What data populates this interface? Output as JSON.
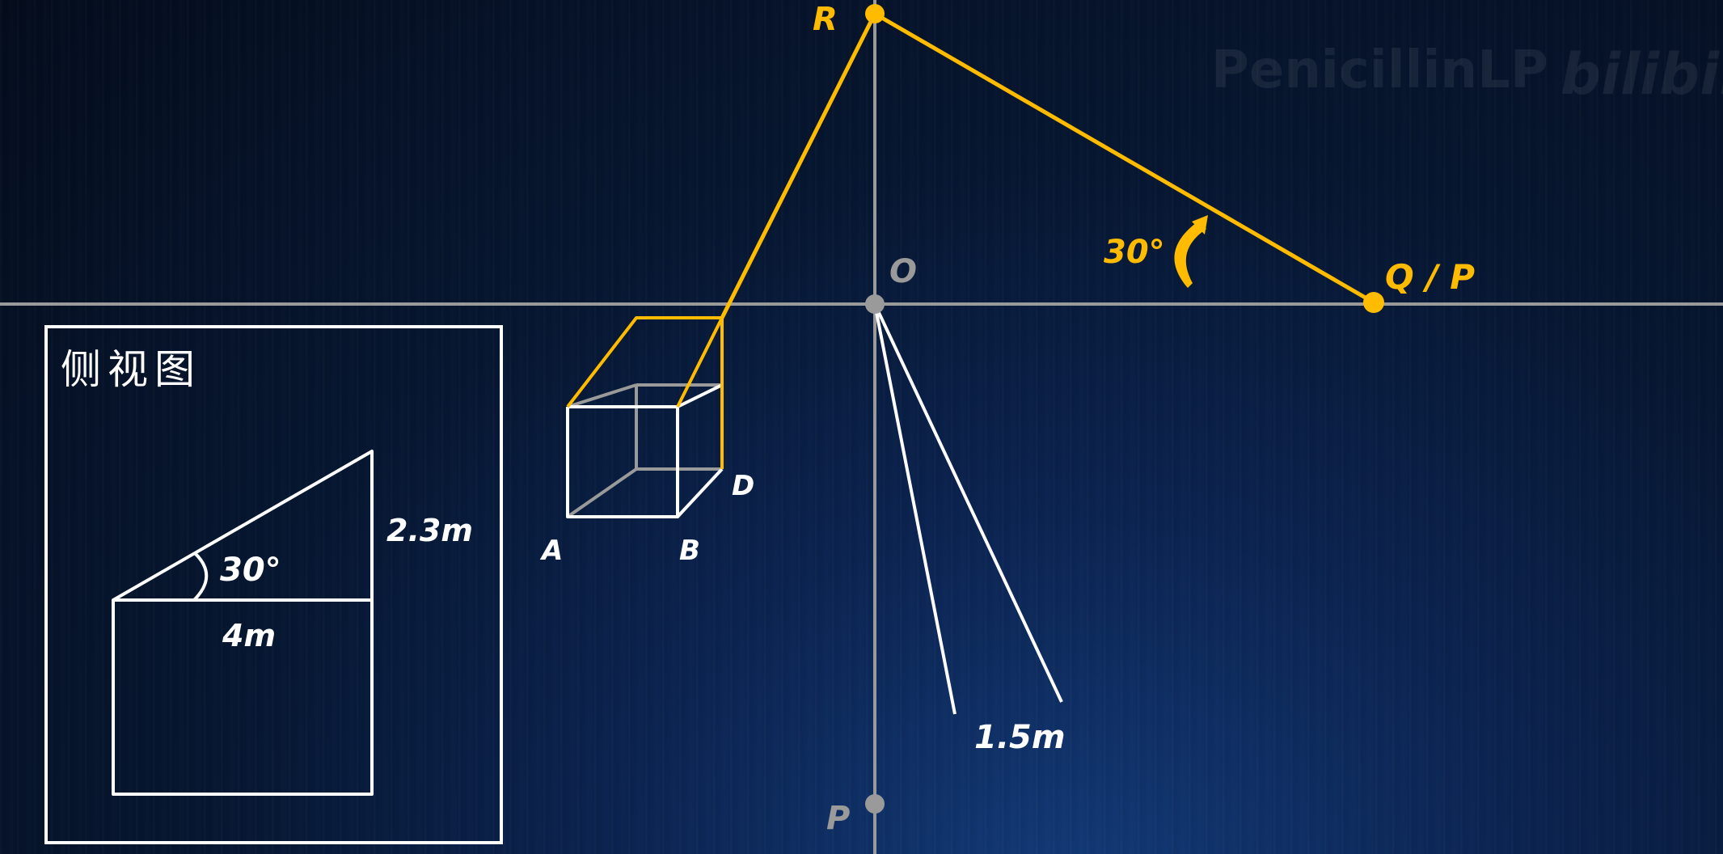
{
  "watermark": {
    "author": "PenicillinLP",
    "site": "bilibili"
  },
  "points": {
    "R": "R",
    "O": "O",
    "QP": "Q / P",
    "P": "P",
    "A": "A",
    "B": "B",
    "D": "D"
  },
  "main_view": {
    "angle_label": "30°",
    "length_label": "1.5m"
  },
  "side_view": {
    "title": "侧视图",
    "angle_label": "30°",
    "height_label": "2.3m",
    "width_label": "4m"
  },
  "colors": {
    "accent": "#ffbb00",
    "axis": "#9a9a9a",
    "line": "#ffffff"
  }
}
